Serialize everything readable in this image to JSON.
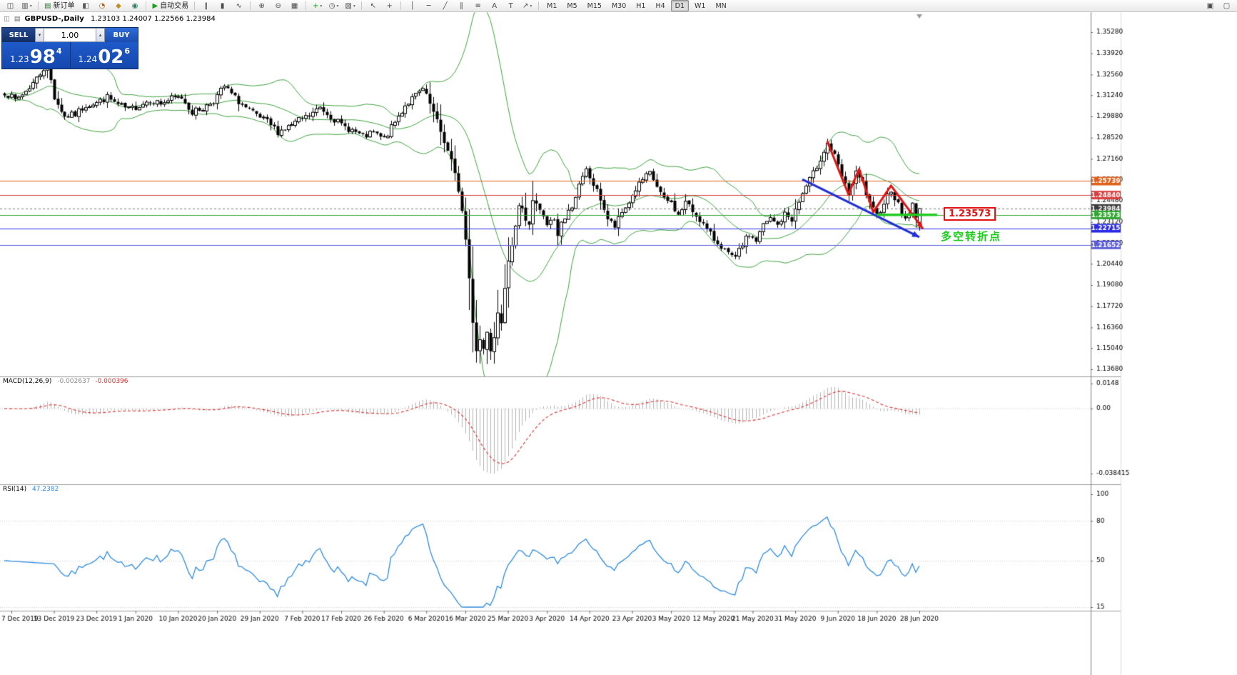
{
  "colors": {
    "panel_blue": "#1A52C4",
    "sell_navy": "#13306B",
    "buy_blue": "#2059C8",
    "annotation_red": "#E01414",
    "annotation_green": "#1FCC1F",
    "annotation_blue": "#1F2FD8",
    "bollinger_green": "#3FA33F",
    "rsi_blue": "#2E8BE0",
    "macd_signal_red": "#E03030"
  },
  "toolbar": {
    "dd_glyph": "▾",
    "groups": [
      [
        {
          "n": "new-chart",
          "g": "◫"
        },
        {
          "n": "profiles",
          "g": "▥",
          "dd": true
        }
      ],
      [
        {
          "n": "new-order",
          "g": "▤",
          "c": "#2E7D32",
          "t": "新订单"
        },
        {
          "n": "chart-window",
          "g": "◧",
          "c": "#555555"
        },
        {
          "n": "alerts",
          "g": "◔",
          "c": "#B06000"
        },
        {
          "n": "market-watch",
          "g": "◆",
          "c": "#C09020"
        },
        {
          "n": "navigator",
          "g": "◉",
          "c": "#2E7D60"
        }
      ],
      [
        {
          "n": "autotrading",
          "g": "▶",
          "c": "#18A018",
          "t": "自动交易"
        }
      ],
      [
        {
          "n": "bar-chart",
          "g": "‖"
        },
        {
          "n": "candlestick-chart",
          "g": "▮"
        },
        {
          "n": "line-chart",
          "g": "∿"
        }
      ],
      [
        {
          "n": "zoom-in",
          "g": "⊕"
        },
        {
          "n": "zoom-out",
          "g": "⊖"
        },
        {
          "n": "tile-windows",
          "g": "▦"
        }
      ],
      [
        {
          "n": "indicators",
          "g": "+",
          "c": "#18A018",
          "dd": true
        },
        {
          "n": "periods",
          "g": "◷",
          "dd": true
        },
        {
          "n": "templates",
          "g": "▧",
          "dd": true
        }
      ],
      [
        {
          "n": "cursor",
          "g": "↖"
        },
        {
          "n": "crosshair",
          "g": "+"
        }
      ],
      [
        {
          "n": "vertical-line",
          "g": "│"
        },
        {
          "n": "horizontal-line",
          "g": "─"
        },
        {
          "n": "trendline",
          "g": "╱"
        },
        {
          "n": "equidistant-channel",
          "g": "∥"
        },
        {
          "n": "fibonacci",
          "g": "≡"
        },
        {
          "n": "text",
          "g": "A"
        },
        {
          "n": "text-label",
          "g": "T"
        },
        {
          "n": "arrows",
          "g": "↗",
          "dd": true
        }
      ]
    ],
    "timeframes": [
      "M1",
      "M5",
      "M15",
      "M30",
      "H1",
      "H4",
      "D1",
      "W1",
      "MN"
    ],
    "active_timeframe": "D1",
    "right_icons": [
      {
        "n": "chart-list",
        "g": "▣"
      },
      {
        "n": "window-arrange",
        "g": "▢"
      }
    ]
  },
  "chart_header": {
    "icon1": "◫",
    "icon2": "▤",
    "title": "GBPUSD-,Daily",
    "values": "1.23103 1.24007 1.22566 1.23984"
  },
  "trade_panel": {
    "sell_label": "SELL",
    "buy_label": "BUY",
    "lot_value": "1.00",
    "lot_down_glyph": "▾",
    "lot_up_glyph": "▴",
    "sell_price_prefix": "1.23",
    "sell_price_main": "98",
    "sell_price_pip": "4",
    "buy_price_prefix": "1.24",
    "buy_price_main": "02",
    "buy_price_pip": "6"
  },
  "indicators": {
    "macd": {
      "label": "MACD(12,26,9)",
      "main": "-0.002637",
      "signal": "-0.000396"
    },
    "rsi": {
      "label": "RSI(14)",
      "value": "47.2382"
    }
  },
  "chart_data": {
    "type": "candlestick",
    "symbol": "GBPUSD",
    "period": "Daily",
    "bars": 259,
    "last_candle": {
      "open": 1.23103,
      "high": 1.24007,
      "low": 1.22566,
      "close": 1.23984
    },
    "anchors": [
      [
        0,
        1.3145
      ],
      [
        3,
        1.309
      ],
      [
        6,
        1.315
      ],
      [
        9,
        1.323
      ],
      [
        12,
        1.333
      ],
      [
        14,
        1.311
      ],
      [
        17,
        1.2985
      ],
      [
        20,
        1.3
      ],
      [
        23,
        1.306
      ],
      [
        26,
        1.3075
      ],
      [
        29,
        1.311
      ],
      [
        32,
        1.306
      ],
      [
        35,
        1.303
      ],
      [
        38,
        1.306
      ],
      [
        41,
        1.3095
      ],
      [
        44,
        1.307
      ],
      [
        47,
        1.31
      ],
      [
        50,
        1.311
      ],
      [
        53,
        1.3015
      ],
      [
        56,
        1.304
      ],
      [
        59,
        1.309
      ],
      [
        62,
        1.318
      ],
      [
        65,
        1.3105
      ],
      [
        68,
        1.304
      ],
      [
        71,
        1.299
      ],
      [
        74,
        1.295
      ],
      [
        77,
        1.289
      ],
      [
        80,
        1.292
      ],
      [
        83,
        1.296
      ],
      [
        86,
        1.299
      ],
      [
        89,
        1.3045
      ],
      [
        92,
        1.299
      ],
      [
        95,
        1.293
      ],
      [
        98,
        1.29
      ],
      [
        101,
        1.2855
      ],
      [
        104,
        1.288
      ],
      [
        107,
        1.284
      ],
      [
        110,
        1.295
      ],
      [
        113,
        1.306
      ],
      [
        116,
        1.312
      ],
      [
        118,
        1.316
      ],
      [
        120,
        1.3065
      ],
      [
        122,
        1.295
      ],
      [
        124,
        1.283
      ],
      [
        126,
        1.27
      ],
      [
        128,
        1.252
      ],
      [
        129,
        1.238
      ],
      [
        130,
        1.22
      ],
      [
        131,
        1.195
      ],
      [
        132,
        1.168
      ],
      [
        133,
        1.1495
      ],
      [
        134,
        1.156
      ],
      [
        135,
        1.15
      ],
      [
        136,
        1.162
      ],
      [
        137,
        1.1505
      ],
      [
        138,
        1.1585
      ],
      [
        139,
        1.175
      ],
      [
        140,
        1.168
      ],
      [
        141,
        1.187
      ],
      [
        142,
        1.204
      ],
      [
        143,
        1.218
      ],
      [
        144,
        1.23
      ],
      [
        145,
        1.242
      ],
      [
        146,
        1.24
      ],
      [
        147,
        1.231
      ],
      [
        148,
        1.23
      ],
      [
        149,
        1.2455
      ],
      [
        151,
        1.238
      ],
      [
        153,
        1.229
      ],
      [
        155,
        1.233
      ],
      [
        156,
        1.222
      ],
      [
        157,
        1.232
      ],
      [
        158,
        1.233
      ],
      [
        160,
        1.242
      ],
      [
        162,
        1.254
      ],
      [
        164,
        1.264
      ],
      [
        166,
        1.255
      ],
      [
        168,
        1.246
      ],
      [
        170,
        1.233
      ],
      [
        172,
        1.228
      ],
      [
        174,
        1.237
      ],
      [
        176,
        1.244
      ],
      [
        178,
        1.252
      ],
      [
        180,
        1.258
      ],
      [
        182,
        1.262
      ],
      [
        184,
        1.254
      ],
      [
        186,
        1.245
      ],
      [
        188,
        1.244
      ],
      [
        190,
        1.235
      ],
      [
        192,
        1.244
      ],
      [
        194,
        1.238
      ],
      [
        196,
        1.233
      ],
      [
        198,
        1.226
      ],
      [
        200,
        1.22
      ],
      [
        202,
        1.216
      ],
      [
        204,
        1.21
      ],
      [
        206,
        1.2075
      ],
      [
        208,
        1.217
      ],
      [
        210,
        1.223
      ],
      [
        212,
        1.219
      ],
      [
        214,
        1.229
      ],
      [
        216,
        1.233
      ],
      [
        218,
        1.229
      ],
      [
        220,
        1.236
      ],
      [
        222,
        1.233
      ],
      [
        224,
        1.244
      ],
      [
        226,
        1.254
      ],
      [
        228,
        1.262
      ],
      [
        230,
        1.272
      ],
      [
        232,
        1.2815
      ],
      [
        234,
        1.273
      ],
      [
        236,
        1.26
      ],
      [
        238,
        1.249
      ],
      [
        240,
        1.262
      ],
      [
        242,
        1.256
      ],
      [
        244,
        1.242
      ],
      [
        246,
        1.235
      ],
      [
        248,
        1.244
      ],
      [
        250,
        1.252
      ],
      [
        252,
        1.242
      ],
      [
        254,
        1.233
      ],
      [
        256,
        1.242
      ],
      [
        257,
        1.233
      ],
      [
        258,
        1.2398
      ]
    ],
    "bollinger": {
      "period": 20,
      "deviation": 2,
      "color": "#3FA33F"
    },
    "price_axis": {
      "max": 1.3528,
      "min": 1.1368,
      "ticks": [
        {
          "v": 1.3528,
          "t": "1.35280"
        },
        {
          "v": 1.3392,
          "t": "1.33920"
        },
        {
          "v": 1.3256,
          "t": "1.32560"
        },
        {
          "v": 1.3124,
          "t": "1.31240"
        },
        {
          "v": 1.2988,
          "t": "1.29880"
        },
        {
          "v": 1.2852,
          "t": "1.28520"
        },
        {
          "v": 1.2716,
          "t": "1.27160"
        },
        {
          "v": 1.258,
          "t": "1.25800"
        },
        {
          "v": 1.2448,
          "t": "1.24480"
        },
        {
          "v": 1.2312,
          "t": "1.23120"
        },
        {
          "v": 1.2176,
          "t": "1.21760"
        },
        {
          "v": 1.2044,
          "t": "1.20440"
        },
        {
          "v": 1.1908,
          "t": "1.19080"
        },
        {
          "v": 1.1772,
          "t": "1.17720"
        },
        {
          "v": 1.1636,
          "t": "1.16360"
        },
        {
          "v": 1.1504,
          "t": "1.15040"
        },
        {
          "v": 1.1368,
          "t": "1.13680"
        }
      ]
    },
    "current_price": {
      "value": 1.23984,
      "label": "1.23984",
      "color": "#3C3C3C"
    },
    "levels": [
      {
        "price": 1.25739,
        "label": "1.25739",
        "color": "#E0601A"
      },
      {
        "price": 1.2484,
        "label": "1.24840",
        "color": "#D94040"
      },
      {
        "price": 1.23573,
        "label": "1.23573",
        "color": "#2FA82F"
      },
      {
        "price": 1.22715,
        "label": "1.22715",
        "color": "#2A2AE6"
      },
      {
        "price": 1.21652,
        "label": "1.21652",
        "color": "#5B5BD6"
      }
    ],
    "date_ticks": [
      [
        2,
        "7 Dec 2019"
      ],
      [
        14,
        "13 Dec 2019"
      ],
      [
        26,
        "23 Dec 2019"
      ],
      [
        37,
        "1 Jan 2020"
      ],
      [
        49,
        "10 Jan 2020"
      ],
      [
        60,
        "20 Jan 2020"
      ],
      [
        72,
        "29 Jan 2020"
      ],
      [
        84,
        "7 Feb 2020"
      ],
      [
        95,
        "17 Feb 2020"
      ],
      [
        107,
        "26 Feb 2020"
      ],
      [
        119,
        "6 Mar 2020"
      ],
      [
        130,
        "16 Mar 2020"
      ],
      [
        142,
        "25 Mar 2020"
      ],
      [
        153,
        "3 Apr 2020"
      ],
      [
        165,
        "14 Apr 2020"
      ],
      [
        177,
        "23 Apr 2020"
      ],
      [
        188,
        "3 May 2020"
      ],
      [
        200,
        "12 May 2020"
      ],
      [
        211,
        "21 May 2020"
      ],
      [
        223,
        "31 May 2020"
      ],
      [
        235,
        "9 Jun 2020"
      ],
      [
        246,
        "18 Jun 2020"
      ],
      [
        258,
        "28 Jun 2020"
      ]
    ],
    "macd_panel": {
      "max": 0.0148,
      "min": -0.038415,
      "axis_labels": [
        {
          "v": 0.0148,
          "t": "0.0148"
        },
        {
          "v": 0,
          "t": "0.00"
        },
        {
          "v": -0.038415,
          "t": "-0.038415"
        }
      ],
      "histogram_color": "#B4B4B4",
      "signal_color": "#E03030"
    },
    "rsi_panel": {
      "max": 100,
      "min": 15,
      "axis_labels": [
        {
          "v": 100,
          "t": "100"
        },
        {
          "v": 80,
          "t": "80"
        },
        {
          "v": 50,
          "t": "50"
        },
        {
          "v": 15,
          "t": "15"
        }
      ],
      "levels": [
        80,
        50,
        15
      ],
      "line_color": "#2E8BE0"
    },
    "annotations": {
      "red_zigzag": {
        "points": [
          [
            232,
            1.283
          ],
          [
            238,
            1.249
          ],
          [
            241,
            1.265
          ],
          [
            245,
            1.2375
          ],
          [
            250,
            1.2545
          ],
          [
            259,
            1.2268
          ]
        ],
        "color": "#E01414"
      },
      "blue_arrow": {
        "from": [
          225,
          1.2585
        ],
        "to": [
          258,
          1.2215
        ],
        "color": "#1F2FD8"
      },
      "green_segment": {
        "from_bar": 246,
        "to_bar": 263,
        "price": 1.23573,
        "color": "#1FCC1F"
      },
      "price_callout": {
        "text": "1.23573"
      },
      "turning_point": {
        "text": "多空转折点"
      }
    }
  }
}
